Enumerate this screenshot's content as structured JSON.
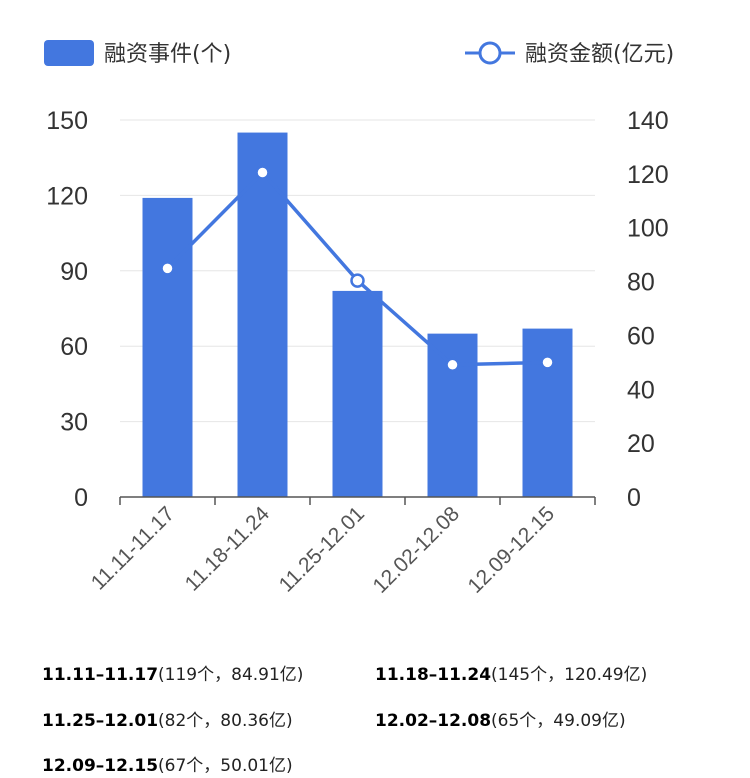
{
  "chart_data": {
    "type": "bar",
    "categories": [
      "11.11-11.17",
      "11.18-11.24",
      "11.25-12.01",
      "12.02-12.08",
      "12.09-12.15"
    ],
    "series": [
      {
        "name": "融资事件(个)",
        "type": "bar",
        "axis": "left",
        "values": [
          119,
          145,
          82,
          65,
          67
        ],
        "color": "#4377DF"
      },
      {
        "name": "融资金额(亿元)",
        "type": "line",
        "axis": "right",
        "values": [
          84.91,
          120.49,
          80.36,
          49.09,
          50.01
        ],
        "color": "#4377DF"
      }
    ],
    "y_left": {
      "min": 0,
      "max": 150,
      "ticks": [
        "0",
        "30",
        "60",
        "90",
        "120",
        "150"
      ]
    },
    "y_right": {
      "min": 0,
      "max": 140,
      "ticks": [
        "0",
        "20",
        "40",
        "60",
        "80",
        "100",
        "120",
        "140"
      ]
    },
    "grid": true,
    "legend": "top"
  },
  "notes": [
    {
      "period": "11.11–11.17",
      "detail": "(119个，84.91亿)"
    },
    {
      "period": "11.18–11.24",
      "detail": "(145个，120.49亿)"
    },
    {
      "period": "11.25–12.01",
      "detail": "(82个，80.36亿)"
    },
    {
      "period": "12.02–12.08",
      "detail": "(65个，49.09亿)"
    },
    {
      "period": "12.09–12.15",
      "detail": "(67个，50.01亿)"
    }
  ]
}
